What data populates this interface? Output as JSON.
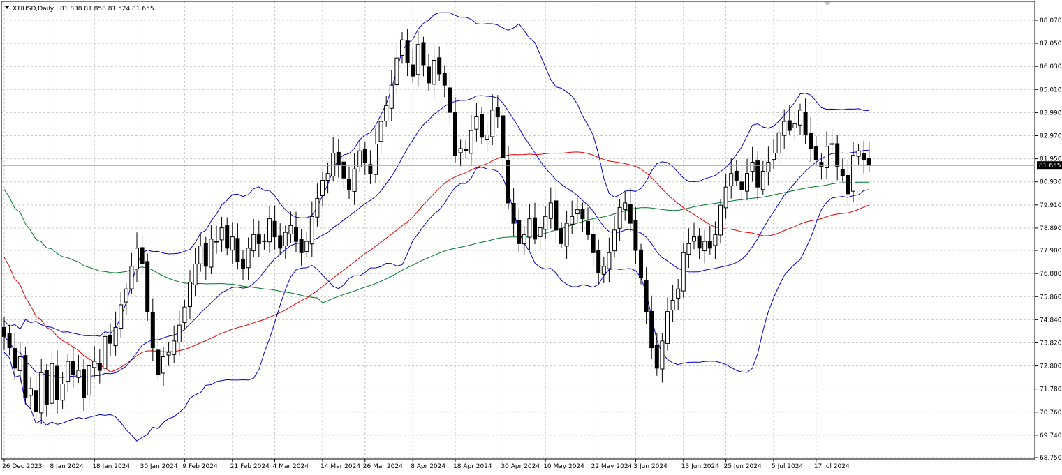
{
  "header": {
    "marker_icon": "triangle-down-icon",
    "symbol": "XTIUSD,Daily",
    "ohlc": "81.838 81.858 81.524 81.655"
  },
  "colors": {
    "background": "#ffffff",
    "grid": "#c8c8c8",
    "axis": "#000000",
    "candle": "#000000",
    "bollinger": "#0000cc",
    "ma_red": "#e60000",
    "ma_green": "#007a2a",
    "last_price_bg": "#000000",
    "last_price_text": "#ffffff"
  },
  "chart_data": {
    "type": "candlestick",
    "symbol": "XTIUSD",
    "timeframe": "Daily",
    "last_price": "81.655",
    "ylim": [
      68.75,
      88.5
    ],
    "y_ticks": [
      "88.070",
      "87.050",
      "86.030",
      "85.010",
      "83.990",
      "82.970",
      "81.950",
      "80.930",
      "79.910",
      "78.890",
      "77.900",
      "76.880",
      "75.860",
      "74.840",
      "73.820",
      "72.800",
      "71.780",
      "70.760",
      "69.740",
      "68.750"
    ],
    "x_ticks": [
      {
        "index": 0,
        "label": "26 Dec 2023"
      },
      {
        "index": 9,
        "label": "8 Jan 2024"
      },
      {
        "index": 17,
        "label": "18 Jan 2024"
      },
      {
        "index": 26,
        "label": "30 Jan 2024"
      },
      {
        "index": 34,
        "label": "9 Feb 2024"
      },
      {
        "index": 43,
        "label": "21 Feb 2024"
      },
      {
        "index": 51,
        "label": "4 Mar 2024"
      },
      {
        "index": 60,
        "label": "14 Mar 2024"
      },
      {
        "index": 68,
        "label": "26 Mar 2024"
      },
      {
        "index": 77,
        "label": "8 Apr 2024"
      },
      {
        "index": 85,
        "label": "18 Apr 2024"
      },
      {
        "index": 94,
        "label": "30 Apr 2024"
      },
      {
        "index": 102,
        "label": "10 May 2024"
      },
      {
        "index": 111,
        "label": "22 May 2024"
      },
      {
        "index": 119,
        "label": "3 Jun 2024"
      },
      {
        "index": 128,
        "label": "13 Jun 2024"
      },
      {
        "index": 136,
        "label": "25 Jun 2024"
      },
      {
        "index": 145,
        "label": "5 Jul 2024"
      },
      {
        "index": 153,
        "label": "17 Jul 2024"
      }
    ],
    "close": [
      74.1,
      73.6,
      72.7,
      73.2,
      71.4,
      71.8,
      70.8,
      72.5,
      71.1,
      72.9,
      71.3,
      72.0,
      73.0,
      72.4,
      72.6,
      71.4,
      72.8,
      73.0,
      72.6,
      74.1,
      73.8,
      74.5,
      75.5,
      76.2,
      77.2,
      78.0,
      77.3,
      75.2,
      73.6,
      72.4,
      73.2,
      73.4,
      73.9,
      74.6,
      75.4,
      76.5,
      77.3,
      78.1,
      77.2,
      78.4,
      78.3,
      78.9,
      78.0,
      78.5,
      77.4,
      77.1,
      78.0,
      78.6,
      78.2,
      78.3,
      79.3,
      78.5,
      78.0,
      78.7,
      79.0,
      78.3,
      77.8,
      78.3,
      79.4,
      80.2,
      81.0,
      81.3,
      82.2,
      81.7,
      81.1,
      80.6,
      81.5,
      82.3,
      81.8,
      81.3,
      82.6,
      83.6,
      84.3,
      85.2,
      86.4,
      87.2,
      86.2,
      85.6,
      87.0,
      86.1,
      85.3,
      86.3,
      85.7,
      85.2,
      84.0,
      82.1,
      82.4,
      82.3,
      83.2,
      83.8,
      82.9,
      83.0,
      84.1,
      83.8,
      82.0,
      80.0,
      79.1,
      78.2,
      78.6,
      79.3,
      78.4,
      78.9,
      79.4,
      80.0,
      78.8,
      78.2,
      79.1,
      79.4,
      79.7,
      79.3,
      78.6,
      77.8,
      76.9,
      77.2,
      77.8,
      78.8,
      79.8,
      80.0,
      79.1,
      77.9,
      76.7,
      75.2,
      73.6,
      72.7,
      73.9,
      75.2,
      75.7,
      76.2,
      77.8,
      78.2,
      78.5,
      78.0,
      78.3,
      78.0,
      78.6,
      79.9,
      80.7,
      81.3,
      81.0,
      80.6,
      81.3,
      81.8,
      80.7,
      81.4,
      81.8,
      82.2,
      83.1,
      83.6,
      83.2,
      83.5,
      84.1,
      83.0,
      82.4,
      81.9,
      81.6,
      82.5,
      82.6,
      81.6,
      81.2,
      80.4,
      82.1,
      82.3,
      81.9,
      81.655
    ],
    "bollinger_bands": {
      "period": 20,
      "note": "upper, middle, lower bands drawn in blue"
    },
    "moving_averages": [
      {
        "color": "red"
      },
      {
        "color": "green"
      }
    ]
  }
}
